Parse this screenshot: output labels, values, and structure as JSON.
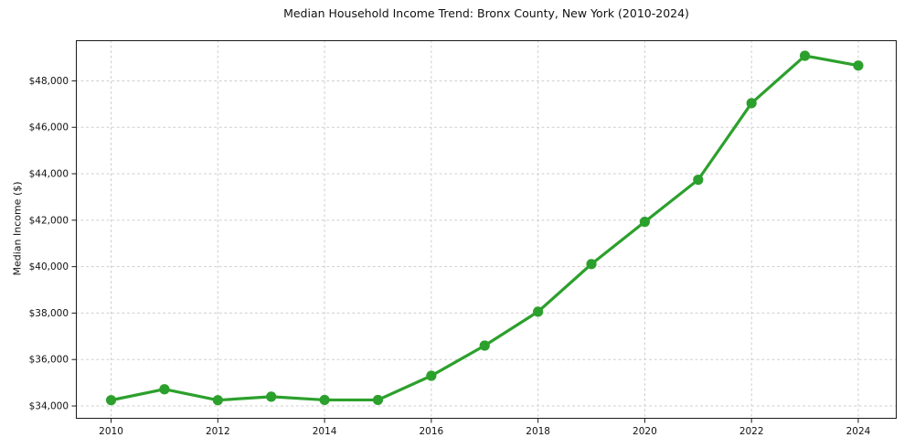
{
  "chart_data": {
    "type": "line",
    "title": "Median Household Income Trend: Bronx County, New York (2010-2024)",
    "xlabel": "",
    "ylabel": "Median Income ($)",
    "x": [
      2010,
      2011,
      2012,
      2013,
      2014,
      2015,
      2016,
      2017,
      2018,
      2019,
      2020,
      2021,
      2022,
      2023,
      2024
    ],
    "series": [
      {
        "name": "Median household income",
        "values": [
          34250,
          34720,
          34250,
          34400,
          34260,
          34260,
          35300,
          36600,
          38060,
          40110,
          41930,
          43740,
          47040,
          49080,
          48660
        ]
      }
    ],
    "x_ticks": [
      2010,
      2012,
      2014,
      2016,
      2018,
      2020,
      2022,
      2024
    ],
    "x_tick_labels": [
      "2010",
      "2012",
      "2014",
      "2016",
      "2018",
      "2020",
      "2022",
      "2024"
    ],
    "y_ticks": [
      34000,
      36000,
      38000,
      40000,
      42000,
      44000,
      46000,
      48000
    ],
    "y_tick_labels": [
      "$34,000",
      "$36,000",
      "$38,000",
      "$40,000",
      "$42,000",
      "$44,000",
      "$46,000",
      "$48,000"
    ],
    "xlim": [
      2009.34,
      2024.72
    ],
    "ylim": [
      33450,
      49750
    ],
    "grid": true,
    "legend": "none",
    "style": {
      "line_color": "#2ca02c",
      "marker": "circle",
      "marker_radius": 5.6,
      "line_width": 3.2,
      "grid_color": "#cdcdcd",
      "grid_dash": "2.8 2.8",
      "spine_color": "#1a1a1a",
      "tick_color": "#1a1a1a",
      "text_color": "#111111",
      "background": "#ffffff"
    }
  }
}
